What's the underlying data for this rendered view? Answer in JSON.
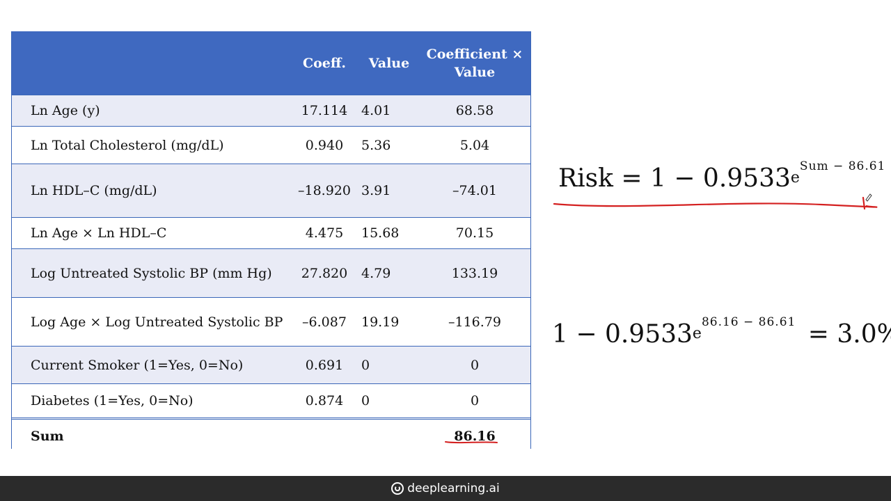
{
  "table": {
    "headers": {
      "label": "",
      "coeff": "Coeff.",
      "value": "Value",
      "product_line1": "Coefficient ×",
      "product_line2": "Value"
    },
    "rows": [
      {
        "label": "Ln Age (y)",
        "coeff": "17.114",
        "value": "4.01",
        "product": "68.58"
      },
      {
        "label": "Ln Total Cholesterol (mg/dL)",
        "coeff": "0.940",
        "value": "5.36",
        "product": "5.04"
      },
      {
        "label": "Ln HDL–C (mg/dL)",
        "coeff": "–18.920",
        "value": "3.91",
        "product": "–74.01"
      },
      {
        "label": "Ln Age × Ln HDL–C",
        "coeff": "4.475",
        "value": "15.68",
        "product": "70.15"
      },
      {
        "label": "Log Untreated Systolic BP (mm Hg)",
        "coeff": "27.820",
        "value": "4.79",
        "product": "133.19"
      },
      {
        "label": "Log Age × Log Untreated Systolic BP",
        "coeff": "–6.087",
        "value": "19.19",
        "product": "–116.79"
      },
      {
        "label": "Current Smoker (1=Yes, 0=No)",
        "coeff": "0.691",
        "value": "0",
        "product": "0"
      },
      {
        "label": "Diabetes (1=Yes, 0=No)",
        "coeff": "0.874",
        "value": "0",
        "product": "0"
      }
    ],
    "sum": {
      "label": "Sum",
      "product": "86.16"
    }
  },
  "formula1": {
    "lhs": "Risk = 1 − 0.9533",
    "base": "e",
    "exponent": "Sum − 86.61"
  },
  "formula2": {
    "lhs": "1 − 0.9533",
    "base": "e",
    "exponent": "86.16 − 86.61",
    "rhs": "= 3.0%"
  },
  "footer": {
    "brand": "deeplearning.ai",
    "icon": "deeplearning-logo-icon"
  },
  "colors": {
    "header_bg": "#3f69c0",
    "row_shade": "#e9ebf6",
    "annotation": "#d42020"
  }
}
